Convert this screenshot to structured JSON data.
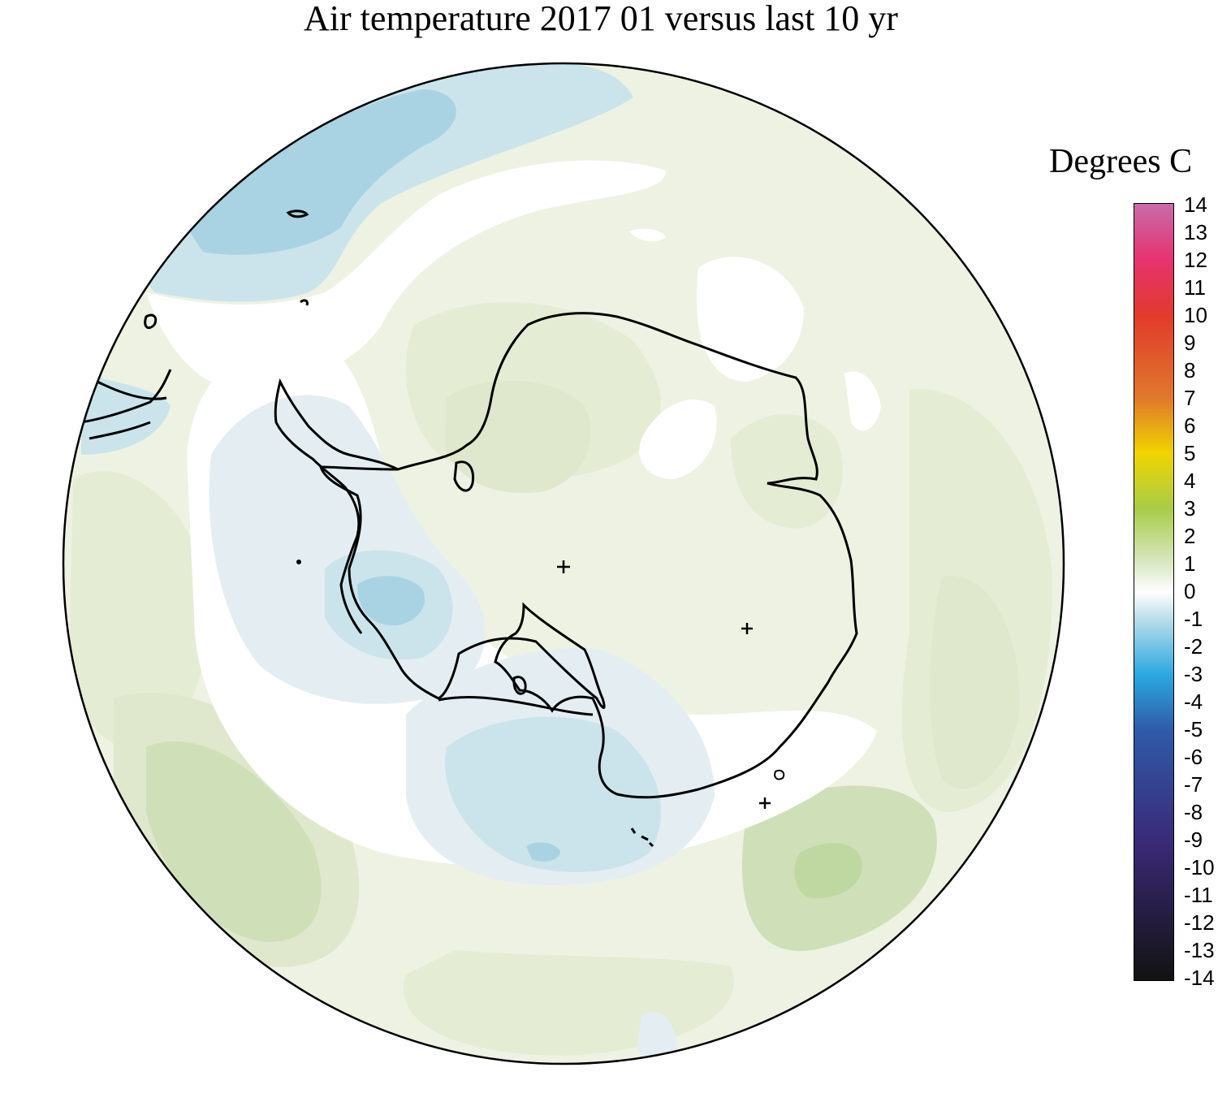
{
  "title": "Air temperature 2017 01 versus last 10 yr",
  "legend": {
    "title": "Degrees C",
    "ticks": [
      "14",
      "13",
      "12",
      "11",
      "10",
      "9",
      "8",
      "7",
      "6",
      "5",
      "4",
      "3",
      "2",
      "1",
      "0",
      "-1",
      "-2",
      "-3",
      "-4",
      "-5",
      "-6",
      "-7",
      "-8",
      "-9",
      "-10",
      "-11",
      "-12",
      "-13",
      "-14"
    ],
    "colors": {
      "14": "#c86bab",
      "12": "#e6336f",
      "10": "#e23a2c",
      "7": "#e0782c",
      "5": "#f0d400",
      "3": "#a8cc48",
      "1": "#dbe8c6",
      "0": "#ffffff",
      "-1": "#b8dcea",
      "-3": "#2aa8e0",
      "-5": "#2f5aa8",
      "-9": "#3a2a78",
      "-14": "#121212"
    }
  },
  "map": {
    "projection": "south-polar-stereographic",
    "region": "Antarctica and Southern Ocean",
    "markers": [
      "plus-marker",
      "plus-marker",
      "plus-marker"
    ],
    "anomaly_colors": {
      "light_green": "#eef2e3",
      "green": "#dfe8cd",
      "mid_green": "#cfdfb7",
      "strong_green": "#bfd8a1",
      "white": "#ffffff",
      "pale_blue": "#e4eef2",
      "light_blue": "#cbe4ec",
      "blue": "#a9d3e3"
    }
  }
}
